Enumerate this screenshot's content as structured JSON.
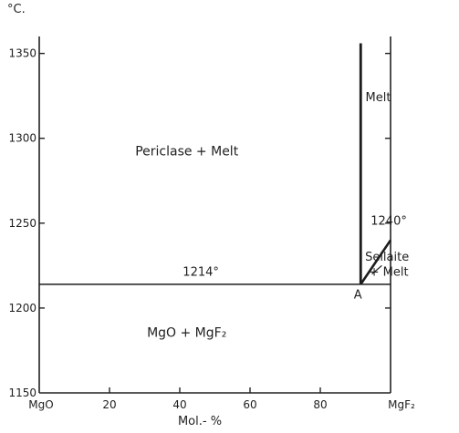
{
  "chart_data": {
    "type": "line",
    "ylabel": "°C.",
    "xlabel": "Mol.- %",
    "xlim": [
      0,
      100
    ],
    "ylim": [
      1150,
      1360
    ],
    "x_ticks": [
      {
        "value": 0,
        "label": "MgO"
      },
      {
        "value": 20,
        "label": "20"
      },
      {
        "value": 40,
        "label": "40"
      },
      {
        "value": 60,
        "label": "60"
      },
      {
        "value": 80,
        "label": "80"
      },
      {
        "value": 100,
        "label": "MgF₂"
      }
    ],
    "y_ticks": [
      {
        "value": 1150,
        "label": "1150"
      },
      {
        "value": 1200,
        "label": "1200"
      },
      {
        "value": 1250,
        "label": "1250"
      },
      {
        "value": 1300,
        "label": "1300"
      },
      {
        "value": 1350,
        "label": "1350"
      }
    ],
    "series": [
      {
        "label_key": "eutectic_line",
        "points": [
          [
            0,
            1214
          ],
          [
            100,
            1214
          ]
        ]
      },
      {
        "label_key": "liquidus_vertical",
        "points": [
          [
            91.5,
            1214
          ],
          [
            91.5,
            1356
          ]
        ]
      },
      {
        "label_key": "sellaite_liquidus",
        "points": [
          [
            91.5,
            1214
          ],
          [
            100,
            1240
          ]
        ]
      }
    ],
    "annotations": {
      "periclase_melt": {
        "text": "Periclase + Melt",
        "x": 42,
        "y": 1290
      },
      "mgo_mgf2": {
        "text": "MgO + MgF₂",
        "x": 42,
        "y": 1183
      },
      "melt": {
        "text": "Melt",
        "x": 96.5,
        "y": 1322
      },
      "t1214": {
        "text": "1214°",
        "x": 46,
        "y": 1219
      },
      "t1240": {
        "text": "1240°",
        "x": 99.5,
        "y": 1249
      },
      "sellaite": {
        "text": "Sellaite",
        "x": 99,
        "y": 1228
      },
      "plus_melt": {
        "text": "+ Melt",
        "x": 99.5,
        "y": 1219
      },
      "point_a": {
        "text": "A",
        "x": 90.7,
        "y": 1206
      }
    }
  }
}
